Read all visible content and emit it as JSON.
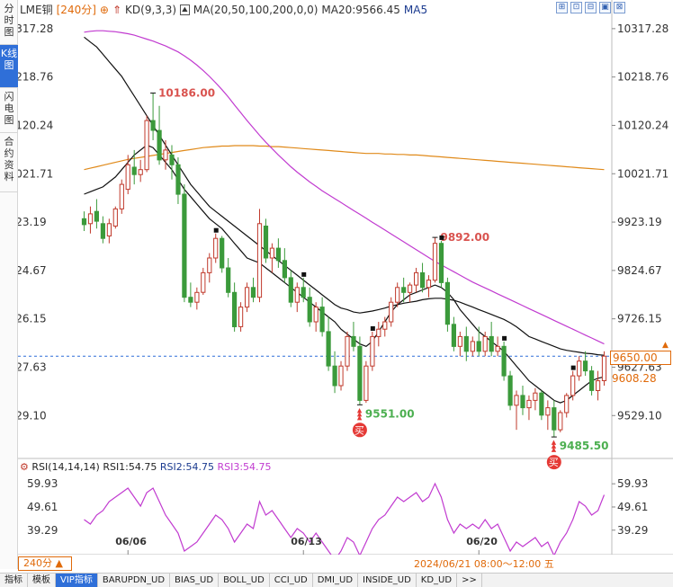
{
  "side_tabs": [
    {
      "label": "分时图",
      "active": false
    },
    {
      "label": "K线图",
      "active": true
    },
    {
      "label": "闪电图",
      "active": false
    },
    {
      "label": "合约资料",
      "active": false
    }
  ],
  "legend": {
    "symbol": "LME铜",
    "period": "[240分]",
    "plus": "⊕",
    "kd": "KD(9,3,3)",
    "ma": "MA(20,50,100,200,0,0)",
    "ma20": "MA20:9566.45",
    "ma5": "MA5"
  },
  "tools": [
    "⊞",
    "⊡",
    "⊟",
    "▣",
    "⊠"
  ],
  "rsi_legend": {
    "title": "RSI(14,14,14)",
    "rsi1": "RSI1:54.75",
    "rsi2": "RSI2:54.75",
    "rsi3": "RSI3:54.75"
  },
  "bottom_tabs": [
    "指标",
    "模板",
    "VIP指标",
    "BARUPDN_UD",
    "BIAS_UD",
    "BOLL_UD",
    "CCI_UD",
    "DMI_UD",
    "INSIDE_UD",
    "KD_UD",
    ">>"
  ],
  "period_box": "240分 ▲",
  "date_range": "2024/06/21 08:00～12:00 五",
  "current_price": "9650.00",
  "ma_price": "9608.28",
  "colors": {
    "up": "#c0392b",
    "down": "#3b9a3b",
    "ma5": "#111111",
    "ma20": "#111111",
    "ma100": "#c13bd0",
    "ma200": "#e08a1a",
    "rsi": "#c13bd0",
    "accent": "#e06a0a",
    "dashed": "#2f6fd8"
  },
  "chart_data": {
    "type": "candlestick",
    "price_ticks": [
      10317.28,
      10218.76,
      10120.24,
      10021.71,
      9923.19,
      9824.67,
      9726.15,
      9627.63,
      9529.1
    ],
    "x_tick_labels": [
      "06/06",
      "06/13",
      "06/20"
    ],
    "annotations": [
      {
        "text": "10186.00",
        "value": 10186.0,
        "kind": "high"
      },
      {
        "text": "9892.00",
        "value": 9892.0,
        "kind": "high"
      },
      {
        "text": "9551.00",
        "value": 9551.0,
        "kind": "low"
      },
      {
        "text": "9485.50",
        "value": 9485.5,
        "kind": "low"
      }
    ],
    "buy_signal_label": "买",
    "current_price": 9650.0,
    "rsi_ticks": [
      59.93,
      49.61,
      39.29
    ],
    "ohlc_approx": [
      [
        9930,
        9945,
        9905,
        9918
      ],
      [
        9920,
        9955,
        9900,
        9940
      ],
      [
        9945,
        9970,
        9910,
        9925
      ],
      [
        9920,
        9935,
        9880,
        9890
      ],
      [
        9895,
        9930,
        9880,
        9920
      ],
      [
        9915,
        9955,
        9910,
        9950
      ],
      [
        9950,
        10010,
        9940,
        10000
      ],
      [
        9990,
        10060,
        9980,
        10040
      ],
      [
        10035,
        10070,
        10000,
        10020
      ],
      [
        10020,
        10050,
        10005,
        10030
      ],
      [
        10030,
        10140,
        10025,
        10130
      ],
      [
        10130,
        10186,
        10090,
        10110
      ],
      [
        10110,
        10160,
        10040,
        10050
      ],
      [
        10050,
        10090,
        10030,
        10070
      ],
      [
        10060,
        10080,
        10010,
        10040
      ],
      [
        10040,
        10055,
        9960,
        9980
      ],
      [
        9980,
        10000,
        9760,
        9770
      ],
      [
        9770,
        9800,
        9750,
        9760
      ],
      [
        9760,
        9790,
        9745,
        9780
      ],
      [
        9780,
        9830,
        9775,
        9820
      ],
      [
        9820,
        9860,
        9800,
        9850
      ],
      [
        9850,
        9900,
        9840,
        9890
      ],
      [
        9890,
        9895,
        9820,
        9830
      ],
      [
        9830,
        9850,
        9770,
        9780
      ],
      [
        9780,
        9800,
        9700,
        9710
      ],
      [
        9710,
        9760,
        9700,
        9750
      ],
      [
        9750,
        9800,
        9740,
        9790
      ],
      [
        9790,
        9810,
        9760,
        9770
      ],
      [
        9770,
        9950,
        9760,
        9920
      ],
      [
        9915,
        9930,
        9840,
        9850
      ],
      [
        9850,
        9880,
        9820,
        9870
      ],
      [
        9870,
        9890,
        9830,
        9845
      ],
      [
        9845,
        9870,
        9800,
        9810
      ],
      [
        9810,
        9825,
        9750,
        9760
      ],
      [
        9760,
        9800,
        9740,
        9790
      ],
      [
        9790,
        9810,
        9760,
        9770
      ],
      [
        9770,
        9790,
        9710,
        9720
      ],
      [
        9720,
        9760,
        9700,
        9750
      ],
      [
        9750,
        9770,
        9690,
        9700
      ],
      [
        9700,
        9730,
        9620,
        9630
      ],
      [
        9630,
        9660,
        9575,
        9590
      ],
      [
        9590,
        9640,
        9580,
        9630
      ],
      [
        9630,
        9700,
        9620,
        9690
      ],
      [
        9690,
        9720,
        9660,
        9670
      ],
      [
        9670,
        9690,
        9551,
        9560
      ],
      [
        9560,
        9640,
        9555,
        9630
      ],
      [
        9630,
        9700,
        9620,
        9690
      ],
      [
        9690,
        9720,
        9670,
        9705
      ],
      [
        9705,
        9730,
        9690,
        9720
      ],
      [
        9720,
        9770,
        9710,
        9760
      ],
      [
        9760,
        9800,
        9750,
        9790
      ],
      [
        9790,
        9810,
        9760,
        9780
      ],
      [
        9780,
        9800,
        9760,
        9795
      ],
      [
        9795,
        9830,
        9780,
        9820
      ],
      [
        9820,
        9840,
        9780,
        9790
      ],
      [
        9790,
        9815,
        9770,
        9805
      ],
      [
        9805,
        9892,
        9800,
        9880
      ],
      [
        9880,
        9885,
        9790,
        9800
      ],
      [
        9800,
        9810,
        9700,
        9715
      ],
      [
        9715,
        9730,
        9660,
        9670
      ],
      [
        9670,
        9700,
        9650,
        9690
      ],
      [
        9690,
        9710,
        9640,
        9660
      ],
      [
        9660,
        9690,
        9650,
        9680
      ],
      [
        9680,
        9710,
        9650,
        9660
      ],
      [
        9660,
        9700,
        9650,
        9690
      ],
      [
        9690,
        9720,
        9650,
        9660
      ],
      [
        9660,
        9690,
        9650,
        9670
      ],
      [
        9670,
        9680,
        9600,
        9610
      ],
      [
        9610,
        9620,
        9540,
        9550
      ],
      [
        9550,
        9580,
        9500,
        9570
      ],
      [
        9570,
        9590,
        9530,
        9545
      ],
      [
        9545,
        9570,
        9520,
        9560
      ],
      [
        9560,
        9585,
        9540,
        9575
      ],
      [
        9575,
        9580,
        9520,
        9530
      ],
      [
        9530,
        9560,
        9500,
        9545
      ],
      [
        9545,
        9560,
        9485.5,
        9500
      ],
      [
        9500,
        9540,
        9495,
        9535
      ],
      [
        9535,
        9575,
        9525,
        9570
      ],
      [
        9570,
        9620,
        9560,
        9610
      ],
      [
        9610,
        9650,
        9600,
        9640
      ],
      [
        9640,
        9660,
        9610,
        9620
      ],
      [
        9620,
        9630,
        9570,
        9580
      ],
      [
        9580,
        9620,
        9560,
        9600
      ],
      [
        9600,
        9660,
        9590,
        9650
      ]
    ],
    "ma_black_1": [
      9980,
      9985,
      9990,
      9995,
      10005,
      10015,
      10030,
      10045,
      10060,
      10070,
      10080,
      10075,
      10060,
      10045,
      10030,
      10010,
      9990,
      9975,
      9960,
      9945,
      9930,
      9920,
      9910,
      9895,
      9880,
      9865,
      9850,
      9845,
      9840,
      9830,
      9820,
      9810,
      9800,
      9790,
      9780,
      9770,
      9760,
      9750,
      9740,
      9730,
      9720,
      9705,
      9695,
      9685,
      9675,
      9670,
      9680,
      9700,
      9720,
      9740,
      9755,
      9765,
      9775,
      9780,
      9785,
      9790,
      9795,
      9790,
      9780,
      9765,
      9745,
      9730,
      9715,
      9700,
      9690,
      9680,
      9670,
      9660,
      9645,
      9630,
      9615,
      9600,
      9590,
      9580,
      9570,
      9560,
      9555,
      9560,
      9570,
      9580,
      9590,
      9600,
      9605,
      9608
    ],
    "ma_black_2": [
      10300,
      10290,
      10280,
      10265,
      10250,
      10235,
      10220,
      10200,
      10180,
      10160,
      10140,
      10120,
      10100,
      10080,
      10060,
      10040,
      10020,
      10000,
      9985,
      9970,
      9955,
      9945,
      9935,
      9925,
      9915,
      9905,
      9895,
      9885,
      9875,
      9865,
      9855,
      9845,
      9835,
      9825,
      9815,
      9805,
      9795,
      9785,
      9775,
      9765,
      9755,
      9748,
      9745,
      9740,
      9738,
      9740,
      9742,
      9745,
      9748,
      9752,
      9755,
      9758,
      9760,
      9762,
      9765,
      9767,
      9768,
      9768,
      9766,
      9764,
      9760,
      9755,
      9750,
      9745,
      9740,
      9735,
      9730,
      9725,
      9718,
      9710,
      9700,
      9690,
      9685,
      9680,
      9675,
      9670,
      9665,
      9662,
      9660,
      9658,
      9656,
      9655,
      9653,
      9652
    ],
    "ma_magenta": [
      10310,
      10312,
      10313,
      10313,
      10312,
      10311,
      10309,
      10307,
      10304,
      10300,
      10296,
      10292,
      10287,
      10282,
      10276,
      10270,
      10262,
      10253,
      10243,
      10232,
      10220,
      10207,
      10193,
      10178,
      10162,
      10146,
      10130,
      10115,
      10100,
      10086,
      10073,
      10060,
      10048,
      10036,
      10025,
      10015,
      10005,
      9996,
      9987,
      9979,
      9971,
      9963,
      9955,
      9947,
      9939,
      9931,
      9923,
      9915,
      9907,
      9899,
      9891,
      9883,
      9875,
      9867,
      9859,
      9851,
      9843,
      9836,
      9829,
      9822,
      9815,
      9808,
      9801,
      9795,
      9789,
      9783,
      9777,
      9771,
      9765,
      9759,
      9753,
      9747,
      9741,
      9735,
      9729,
      9723,
      9717,
      9711,
      9705,
      9699,
      9693,
      9687,
      9681,
      9675
    ],
    "ma_orange": [
      10030,
      10033,
      10036,
      10039,
      10042,
      10045,
      10048,
      10051,
      10053,
      10055,
      10057,
      10059,
      10061,
      10063,
      10065,
      10067,
      10069,
      10071,
      10073,
      10075,
      10076,
      10077,
      10078,
      10078,
      10079,
      10079,
      10079,
      10079,
      10078,
      10078,
      10077,
      10077,
      10076,
      10075,
      10074,
      10073,
      10072,
      10071,
      10070,
      10069,
      10068,
      10067,
      10066,
      10065,
      10064,
      10063,
      10063,
      10063,
      10062,
      10062,
      10061,
      10061,
      10060,
      10060,
      10059,
      10058,
      10057,
      10056,
      10055,
      10054,
      10053,
      10052,
      10051,
      10050,
      10049,
      10048,
      10047,
      10046,
      10045,
      10044,
      10043,
      10042,
      10041,
      10040,
      10039,
      10038,
      10037,
      10036,
      10035,
      10034,
      10033,
      10032,
      10031,
      10030
    ],
    "rsi": [
      44,
      42,
      46,
      48,
      52,
      54,
      56,
      58,
      54,
      50,
      56,
      58,
      52,
      46,
      42,
      38,
      30,
      32,
      34,
      38,
      42,
      46,
      44,
      40,
      34,
      38,
      42,
      40,
      52,
      46,
      48,
      44,
      40,
      36,
      40,
      38,
      34,
      38,
      34,
      30,
      26,
      30,
      36,
      34,
      28,
      34,
      40,
      44,
      46,
      50,
      54,
      52,
      54,
      56,
      52,
      54,
      60,
      54,
      44,
      38,
      42,
      40,
      42,
      40,
      44,
      40,
      42,
      36,
      30,
      34,
      32,
      34,
      36,
      32,
      34,
      28,
      34,
      38,
      44,
      52,
      50,
      46,
      48,
      55
    ]
  }
}
